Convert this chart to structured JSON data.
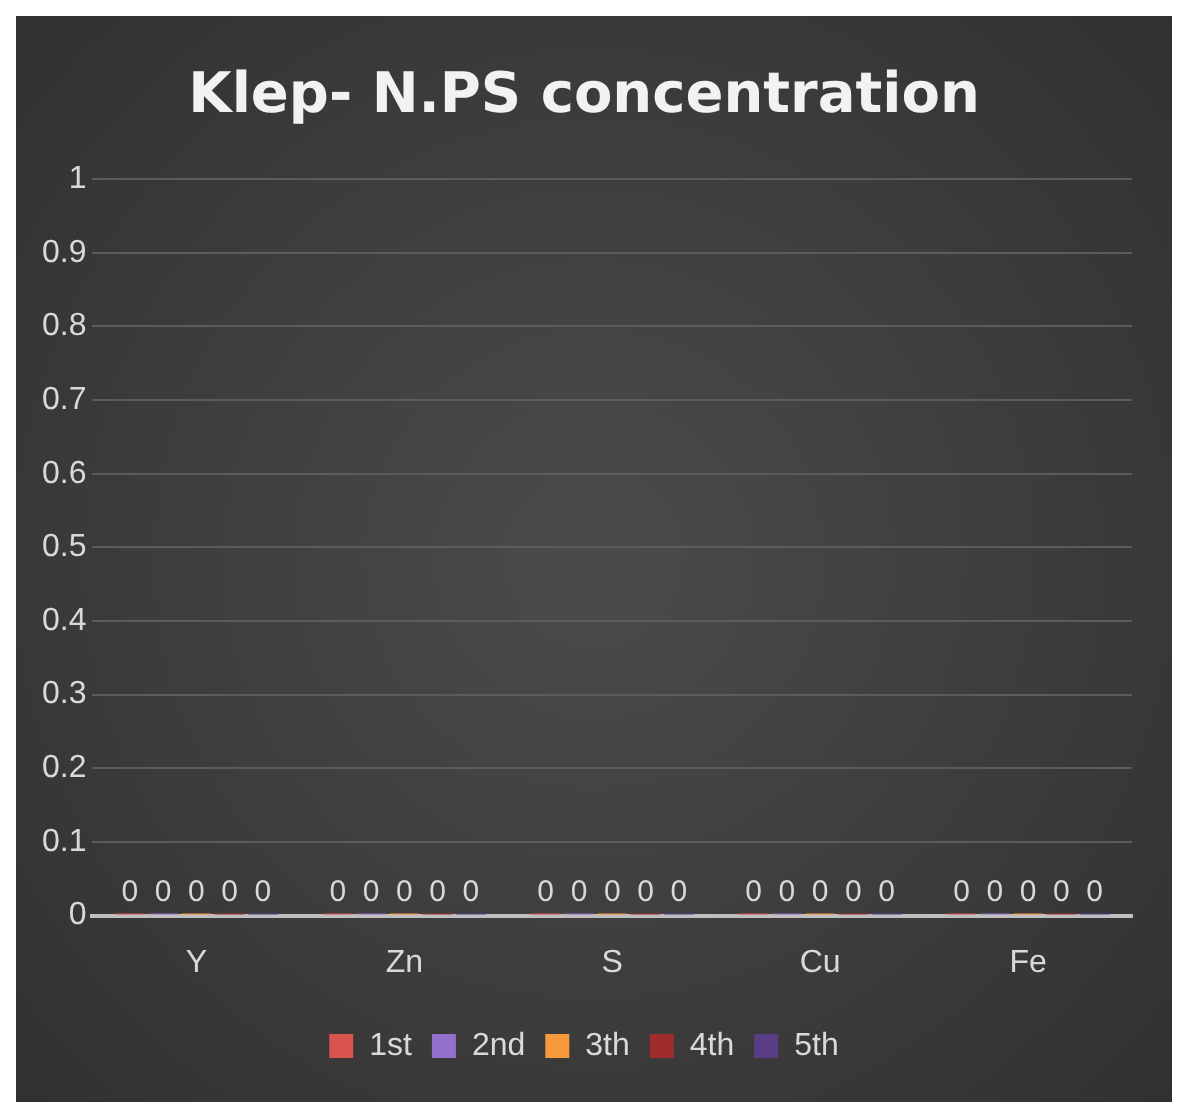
{
  "chart_data": {
    "type": "bar",
    "title": "Klep- N.PS concentration",
    "categories": [
      "Y",
      "Zn",
      "S",
      "Cu",
      "Fe"
    ],
    "series": [
      {
        "name": "1st",
        "color": "#d9534f",
        "values": [
          0,
          0,
          0,
          0,
          0
        ]
      },
      {
        "name": "2nd",
        "color": "#9370c9",
        "values": [
          0,
          0,
          0,
          0,
          0
        ]
      },
      {
        "name": "3th",
        "color": "#f79a3c",
        "values": [
          0,
          0,
          0,
          0,
          0
        ]
      },
      {
        "name": "4th",
        "color": "#a02b2b",
        "values": [
          0,
          0,
          0,
          0,
          0
        ]
      },
      {
        "name": "5th",
        "color": "#5a3e85",
        "values": [
          0,
          0,
          0,
          0,
          0
        ]
      }
    ],
    "ylim": [
      0,
      1
    ],
    "yticks": [
      0,
      0.1,
      0.2,
      0.3,
      0.4,
      0.5,
      0.6,
      0.7,
      0.8,
      0.9,
      1
    ],
    "grid": "y",
    "legend": "bottom",
    "data_labels": true
  }
}
